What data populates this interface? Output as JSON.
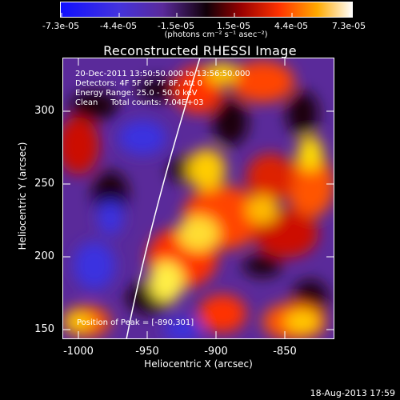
{
  "colorbar": {
    "ticks": [
      "-7.3e-05",
      "-4.4e-05",
      "-1.5e-05",
      "1.5e-05",
      "4.4e-05",
      "7.3e-05"
    ],
    "units": "(photons cm⁻² s⁻¹ asec⁻²)",
    "colors": [
      "#1a1aff",
      "#5a2bd6",
      "#1a0010",
      "#8a0000",
      "#ff3300",
      "#ff9900",
      "#ffff66",
      "#ffffff"
    ]
  },
  "title": "Reconstructed RHESSI Image",
  "info": {
    "line1": "20-Dec-2011 13:50:50.000 to 13:56:50.000",
    "line2": "Detectors: 4F 5F 6F 7F 8F, Att 0",
    "line3": "Energy Range: 25.0 - 50.0 keV",
    "line4": "Clean     Total counts: 7.04E+03"
  },
  "peak": "Position of Peak = [-890,301]",
  "axes": {
    "xlabel": "Heliocentric X (arcsec)",
    "ylabel": "Heliocentric Y (arcsec)",
    "xticks": [
      "-1000",
      "-950",
      "-900",
      "-850"
    ],
    "yticks": [
      "300",
      "250",
      "200",
      "150"
    ]
  },
  "footer": "18-Aug-2013 17:59"
}
